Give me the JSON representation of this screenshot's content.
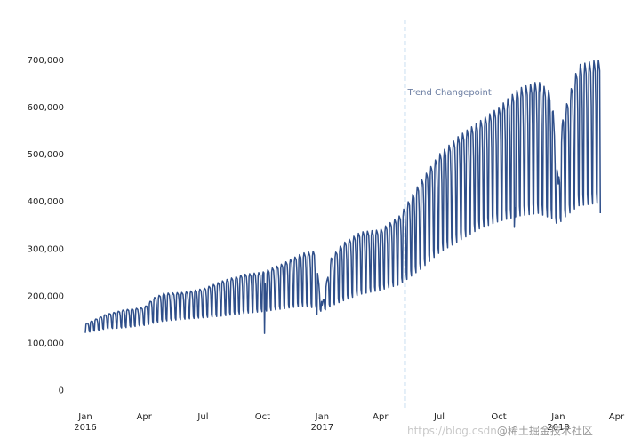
{
  "chart_data": {
    "type": "line",
    "title": "",
    "xlabel": "",
    "ylabel": "",
    "x_range": [
      "2015-12-10",
      "2018-04-10"
    ],
    "y_range": [
      -40000,
      790000
    ],
    "grid": false,
    "legend": "none",
    "colors": {
      "line": "#2f4f8a",
      "changepoint": "#7aaede",
      "annotation_text": "#6d7fa3"
    },
    "y_ticks": [
      {
        "value": 0,
        "label": "0"
      },
      {
        "value": 100000,
        "label": "100,000"
      },
      {
        "value": 200000,
        "label": "200,000"
      },
      {
        "value": 300000,
        "label": "300,000"
      },
      {
        "value": 400000,
        "label": "400,000"
      },
      {
        "value": 500000,
        "label": "500,000"
      },
      {
        "value": 600000,
        "label": "600,000"
      },
      {
        "value": 700000,
        "label": "700,000"
      }
    ],
    "x_ticks": [
      {
        "date": "2016-01-01",
        "label": "Jan",
        "sublabel": "2016"
      },
      {
        "date": "2016-04-01",
        "label": "Apr",
        "sublabel": ""
      },
      {
        "date": "2016-07-01",
        "label": "Jul",
        "sublabel": ""
      },
      {
        "date": "2016-10-01",
        "label": "Oct",
        "sublabel": ""
      },
      {
        "date": "2017-01-01",
        "label": "Jan",
        "sublabel": "2017"
      },
      {
        "date": "2017-04-01",
        "label": "Apr",
        "sublabel": ""
      },
      {
        "date": "2017-07-01",
        "label": "Jul",
        "sublabel": ""
      },
      {
        "date": "2017-10-01",
        "label": "Oct",
        "sublabel": ""
      },
      {
        "date": "2018-01-01",
        "label": "Jan",
        "sublabel": "2018"
      },
      {
        "date": "2018-04-01",
        "label": "Apr",
        "sublabel": ""
      }
    ],
    "changepoint": {
      "date": "2017-05-09",
      "label": "Trend Changepoint"
    },
    "series": [
      {
        "upper_envelope": [
          {
            "date": "2016-01-01",
            "value": 140000
          },
          {
            "date": "2016-02-01",
            "value": 160000
          },
          {
            "date": "2016-03-01",
            "value": 170000
          },
          {
            "date": "2016-04-01",
            "value": 175000
          },
          {
            "date": "2016-04-15",
            "value": 195000
          },
          {
            "date": "2016-05-01",
            "value": 205000
          },
          {
            "date": "2016-06-01",
            "value": 207000
          },
          {
            "date": "2016-07-01",
            "value": 215000
          },
          {
            "date": "2016-08-01",
            "value": 232000
          },
          {
            "date": "2016-09-01",
            "value": 245000
          },
          {
            "date": "2016-10-01",
            "value": 250000
          },
          {
            "date": "2016-11-01",
            "value": 268000
          },
          {
            "date": "2016-12-01",
            "value": 290000
          },
          {
            "date": "2016-12-20",
            "value": 295000
          },
          {
            "date": "2017-01-01",
            "value": 180000
          },
          {
            "date": "2017-01-15",
            "value": 280000
          },
          {
            "date": "2017-02-01",
            "value": 310000
          },
          {
            "date": "2017-03-01",
            "value": 335000
          },
          {
            "date": "2017-04-01",
            "value": 340000
          },
          {
            "date": "2017-05-01",
            "value": 370000
          },
          {
            "date": "2017-06-01",
            "value": 440000
          },
          {
            "date": "2017-07-01",
            "value": 500000
          },
          {
            "date": "2017-08-01",
            "value": 540000
          },
          {
            "date": "2017-09-01",
            "value": 570000
          },
          {
            "date": "2017-10-01",
            "value": 600000
          },
          {
            "date": "2017-11-01",
            "value": 640000
          },
          {
            "date": "2017-12-01",
            "value": 655000
          },
          {
            "date": "2017-12-22",
            "value": 630000
          },
          {
            "date": "2018-01-01",
            "value": 440000
          },
          {
            "date": "2018-01-08",
            "value": 580000
          },
          {
            "date": "2018-02-01",
            "value": 690000
          },
          {
            "date": "2018-03-01",
            "value": 700000
          }
        ],
        "lower_envelope": [
          {
            "date": "2016-01-01",
            "value": 120000
          },
          {
            "date": "2016-02-01",
            "value": 128000
          },
          {
            "date": "2016-03-01",
            "value": 130000
          },
          {
            "date": "2016-04-01",
            "value": 135000
          },
          {
            "date": "2016-05-01",
            "value": 143000
          },
          {
            "date": "2016-06-01",
            "value": 147000
          },
          {
            "date": "2016-07-01",
            "value": 150000
          },
          {
            "date": "2016-08-01",
            "value": 153000
          },
          {
            "date": "2016-09-01",
            "value": 158000
          },
          {
            "date": "2016-10-01",
            "value": 162000
          },
          {
            "date": "2016-11-01",
            "value": 167000
          },
          {
            "date": "2016-12-01",
            "value": 172000
          },
          {
            "date": "2017-01-01",
            "value": 165000
          },
          {
            "date": "2017-02-01",
            "value": 182000
          },
          {
            "date": "2017-03-01",
            "value": 196000
          },
          {
            "date": "2017-04-01",
            "value": 205000
          },
          {
            "date": "2017-05-01",
            "value": 216000
          },
          {
            "date": "2017-06-01",
            "value": 245000
          },
          {
            "date": "2017-07-01",
            "value": 280000
          },
          {
            "date": "2017-08-01",
            "value": 305000
          },
          {
            "date": "2017-09-01",
            "value": 330000
          },
          {
            "date": "2017-10-01",
            "value": 345000
          },
          {
            "date": "2017-11-01",
            "value": 355000
          },
          {
            "date": "2017-12-01",
            "value": 360000
          },
          {
            "date": "2018-01-01",
            "value": 345000
          },
          {
            "date": "2018-02-01",
            "value": 375000
          },
          {
            "date": "2018-03-01",
            "value": 380000
          }
        ],
        "start": "2016-01-01",
        "end": "2018-03-06",
        "weekly_cycle": true,
        "outliers": [
          {
            "date": "2016-10-04",
            "value": 120000
          },
          {
            "date": "2016-12-24",
            "value": 160000
          },
          {
            "date": "2017-10-25",
            "value": 345000
          }
        ],
        "end_value": 375000
      }
    ]
  },
  "watermark": {
    "url_text": "https://blog.csdn",
    "cn_text": "@稀土掘金技术社区"
  }
}
